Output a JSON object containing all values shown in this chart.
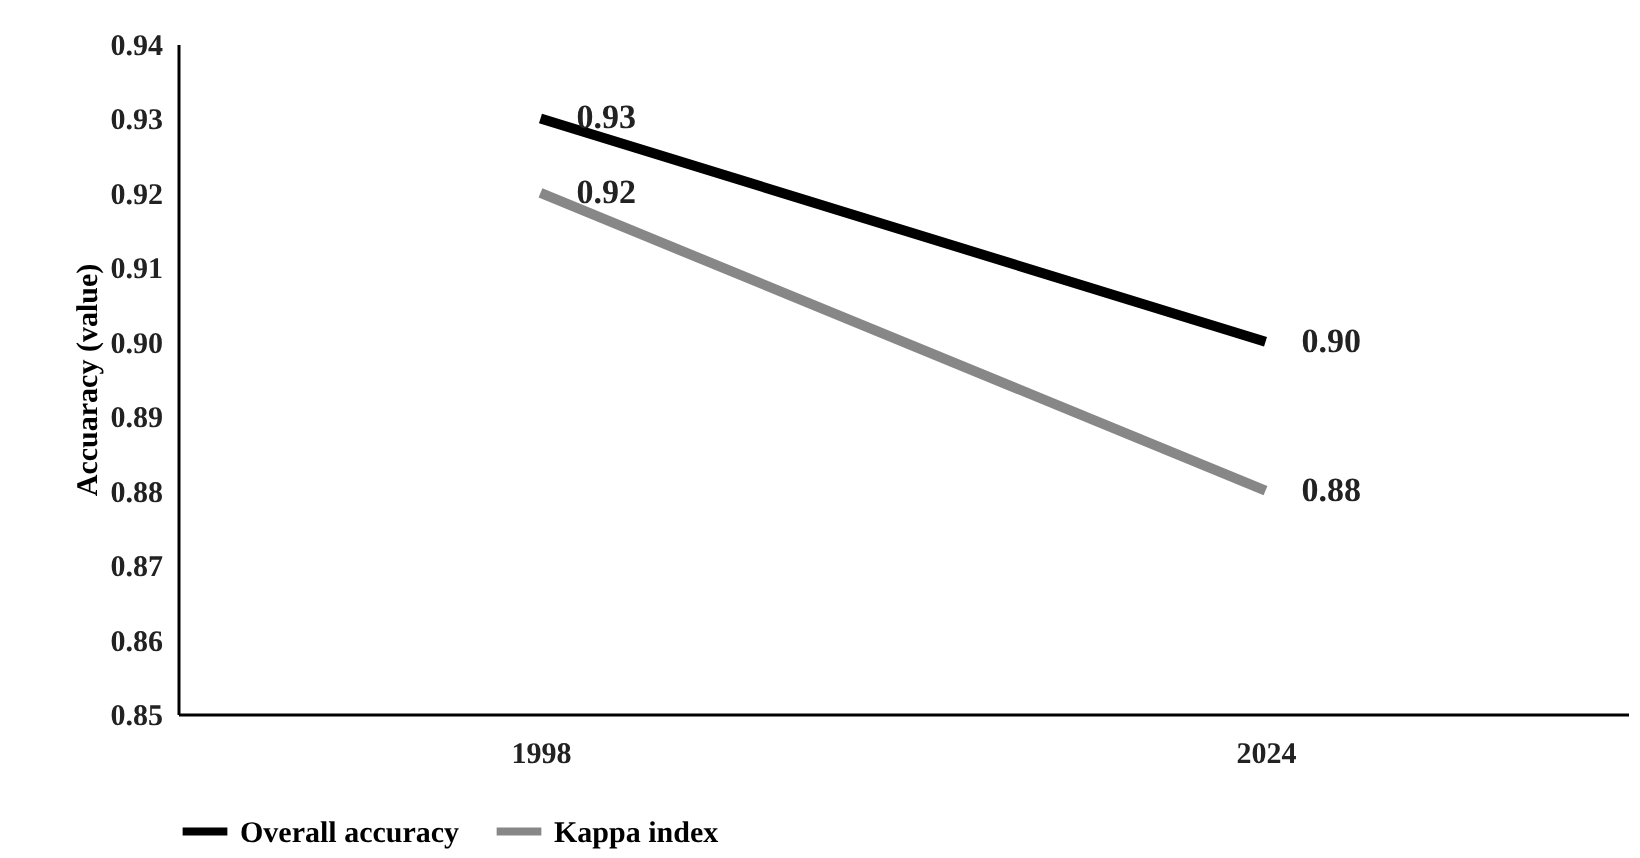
{
  "chart_data": {
    "type": "line",
    "ylabel": "Accuaracy (value)",
    "categories": [
      "1998",
      "2024"
    ],
    "series": [
      {
        "name": "Overall accuracy",
        "color": "#000000",
        "values": [
          0.93,
          0.9
        ],
        "value_labels": [
          "0.93",
          "0.90"
        ]
      },
      {
        "name": "Kappa index",
        "color": "#878787",
        "values": [
          0.92,
          0.88
        ],
        "value_labels": [
          "0.92",
          "0.88"
        ]
      }
    ],
    "ylim": [
      0.85,
      0.94
    ],
    "yticks": [
      0.85,
      0.86,
      0.87,
      0.88,
      0.89,
      {
        "value": 0.9,
        "label": "0.90"
      },
      0.91,
      0.92,
      0.93,
      0.94
    ],
    "grid": false,
    "legend": "bottom",
    "marker": "none",
    "line_style": "solid"
  }
}
